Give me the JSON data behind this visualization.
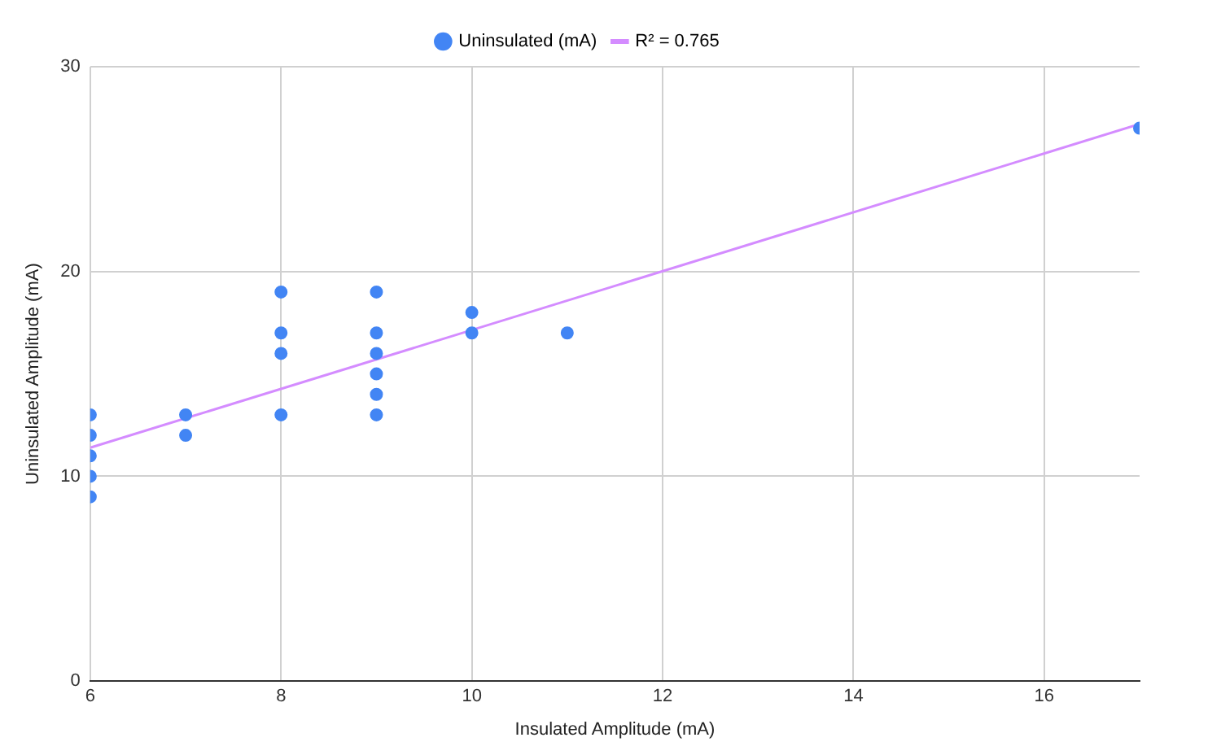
{
  "chart_data": {
    "type": "scatter",
    "xlabel": "Insulated Amplitude (mA)",
    "ylabel": "Uninsulated Amplitude (mA)",
    "series": [
      {
        "name": "Uninsulated (mA)",
        "color": "#4285f4",
        "marker": "circle",
        "x": [
          6,
          6,
          6,
          6,
          6,
          7,
          7,
          8,
          8,
          8,
          8,
          9,
          9,
          9,
          9,
          9,
          9,
          10,
          10,
          11,
          17
        ],
        "values": [
          13,
          12,
          11,
          10,
          9,
          13,
          12,
          19,
          17,
          16,
          13,
          19,
          17,
          16,
          15,
          14,
          13,
          18,
          17,
          17,
          27
        ]
      },
      {
        "name": "R² = 0.765",
        "type": "line",
        "color": "#d48cff",
        "marker": "none",
        "x": [
          6,
          17
        ],
        "values": [
          11.4,
          27.2
        ]
      }
    ],
    "xlim": [
      6,
      17
    ],
    "xticks": [
      6,
      8,
      10,
      12,
      14,
      16
    ],
    "ylim": [
      0,
      30
    ],
    "yticks": [
      0,
      10,
      20,
      30
    ],
    "grid": true,
    "legend": "top"
  }
}
